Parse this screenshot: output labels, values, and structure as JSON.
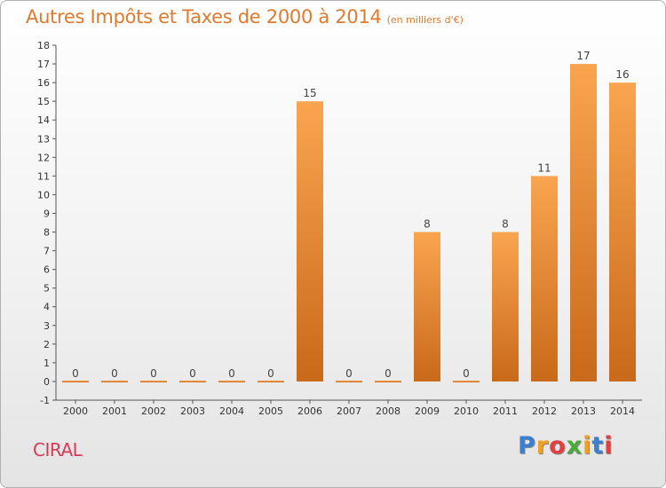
{
  "header": {
    "title": "Autres Impôts et Taxes de 2000 à 2014",
    "unit": "(en milliers d'€)"
  },
  "footer": {
    "commune": "CIRAL",
    "logo_letters": [
      {
        "ch": "P",
        "color": "#3a7fd0"
      },
      {
        "ch": "r",
        "color": "#f0a020"
      },
      {
        "ch": "o",
        "color": "#e04040"
      },
      {
        "ch": "x",
        "color": "#4aaa3a"
      },
      {
        "ch": "i",
        "color": "#f0a020"
      },
      {
        "ch": "t",
        "color": "#3a7fd0"
      },
      {
        "ch": "i",
        "color": "#e04040"
      }
    ]
  },
  "chart_data": {
    "type": "bar",
    "categories": [
      "2000",
      "2001",
      "2002",
      "2003",
      "2004",
      "2005",
      "2006",
      "2007",
      "2008",
      "2009",
      "2010",
      "2011",
      "2012",
      "2013",
      "2014"
    ],
    "values": [
      0,
      0,
      0,
      0,
      0,
      0,
      15,
      0,
      0,
      8,
      0,
      8,
      11,
      17,
      16
    ],
    "data_labels": [
      "0",
      "0",
      "0",
      "0",
      "0",
      "0",
      "15",
      "0",
      "0",
      "8",
      "0",
      "8",
      "11",
      "17",
      "16"
    ],
    "yticks": [
      -1,
      0,
      1,
      2,
      3,
      4,
      5,
      6,
      7,
      8,
      9,
      10,
      11,
      12,
      13,
      14,
      15,
      16,
      17,
      18
    ],
    "ylim": [
      -1,
      18
    ],
    "bar_color": "#f09a45",
    "grid": false
  }
}
